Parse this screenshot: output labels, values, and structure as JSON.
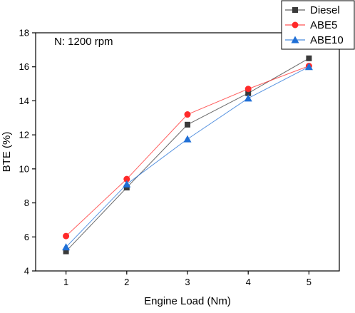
{
  "chart_data": {
    "type": "line",
    "annotation": "N: 1200 rpm",
    "xlabel": "Engine Load (Nm)",
    "ylabel": "BTE (%)",
    "x": [
      1,
      2,
      3,
      4,
      5
    ],
    "xlim": [
      0.5,
      5.5
    ],
    "ylim": [
      4,
      18
    ],
    "xticks": [
      1,
      2,
      3,
      4,
      5
    ],
    "yticks": [
      4,
      6,
      8,
      10,
      12,
      14,
      16,
      18
    ],
    "grid": false,
    "legend_position": "top-right",
    "series": [
      {
        "name": "Diesel",
        "values": [
          5.15,
          8.9,
          12.6,
          14.45,
          16.5
        ],
        "color": "#3a3a3a",
        "marker": "square"
      },
      {
        "name": "ABE5",
        "values": [
          6.05,
          9.4,
          13.2,
          14.7,
          16.05
        ],
        "color": "#ff2a2a",
        "marker": "circle"
      },
      {
        "name": "ABE10",
        "values": [
          5.4,
          9.1,
          11.75,
          14.15,
          16.0
        ],
        "color": "#1f6fd6",
        "marker": "triangle"
      }
    ]
  }
}
